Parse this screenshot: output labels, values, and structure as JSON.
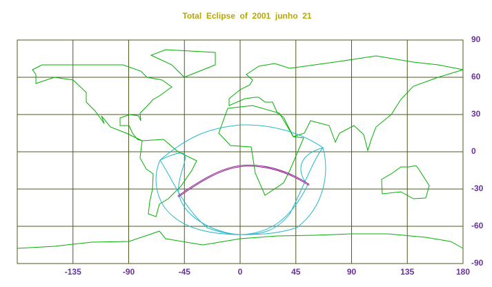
{
  "map": {
    "title": "Total  Eclipse  of  2001  junho  21",
    "lonlim": [
      -180,
      180
    ],
    "latlim": [
      -90,
      90
    ],
    "lonticks": [
      -135,
      -90,
      -45,
      0,
      45,
      90,
      135,
      180
    ],
    "latticks": [
      90,
      60,
      30,
      0,
      -30,
      -60,
      -90
    ]
  }
}
